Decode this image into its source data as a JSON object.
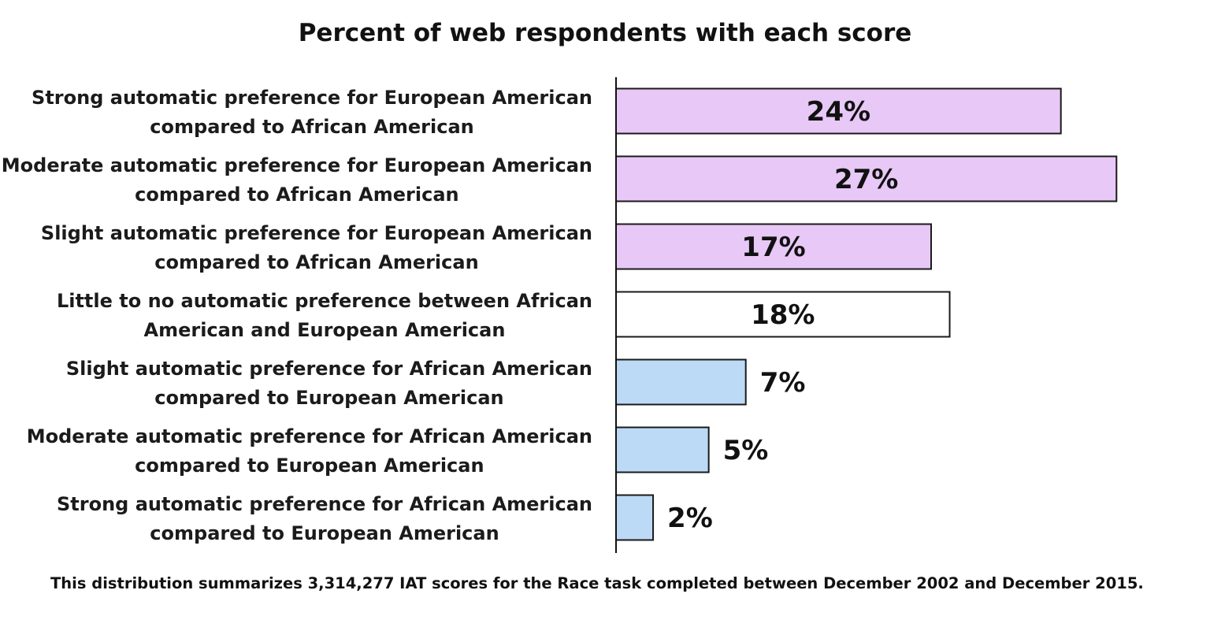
{
  "chart_data": {
    "type": "bar",
    "orientation": "horizontal",
    "title": "Percent of web respondents with each score",
    "categories": [
      [
        "Strong automatic preference for European American",
        "compared to African American"
      ],
      [
        "Moderate automatic preference for European American",
        "compared to African American"
      ],
      [
        "Slight automatic preference for European American",
        "compared to African American"
      ],
      [
        "Little to no automatic preference between African",
        "American and European American"
      ],
      [
        "Slight automatic preference for African American",
        "compared to European American"
      ],
      [
        "Moderate automatic preference for African American",
        "compared to European American"
      ],
      [
        "Strong automatic preference for African American",
        "compared to European American"
      ]
    ],
    "values": [
      24,
      27,
      17,
      18,
      7,
      5,
      2
    ],
    "value_labels": [
      "24%",
      "27%",
      "17%",
      "18%",
      "7%",
      "5%",
      "2%"
    ],
    "unit": "%",
    "bar_colors": [
      "#e8c8f6",
      "#e8c8f6",
      "#e8c8f6",
      "#ffffff",
      "#bcdaf6",
      "#bcdaf6",
      "#bcdaf6"
    ],
    "bar_outline_color": "#1a1a1a",
    "xlim": [
      0,
      27.2
    ],
    "grid": false,
    "legend": "none",
    "footnote": "This distribution summarizes 3,314,277 IAT scores for the Race task completed between December 2002 and December 2015."
  }
}
